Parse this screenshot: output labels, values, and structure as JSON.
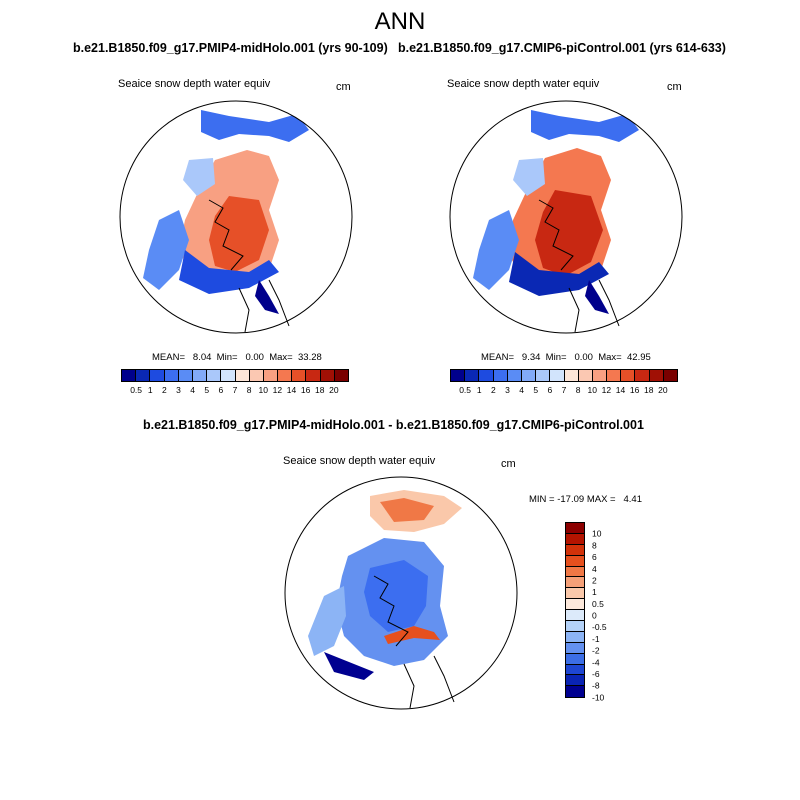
{
  "title": "ANN",
  "panels": [
    {
      "case_title": "b.e21.B1850.f09_g17.PMIP4-midHolo.001 (yrs 90-109)",
      "variable": "Seaice snow depth water equiv",
      "units": "cm",
      "stats": "MEAN=   8.04  Min=   0.00  Max=  33.28"
    },
    {
      "case_title": "b.e21.B1850.f09_g17.CMIP6-piControl.001 (yrs 614-633)",
      "variable": "Seaice snow depth water equiv",
      "units": "cm",
      "stats": "MEAN=   9.34  Min=   0.00  Max=  42.95"
    }
  ],
  "diff_panel": {
    "case_title": "b.e21.B1850.f09_g17.PMIP4-midHolo.001 - b.e21.B1850.f09_g17.CMIP6-piControl.001",
    "variable": "Seaice snow depth water equiv",
    "units": "cm",
    "stats": "MIN = -17.09 MAX =   4.41"
  },
  "colorbar": {
    "labels": [
      "0.5",
      "1",
      "2",
      "3",
      "4",
      "5",
      "6",
      "7",
      "8",
      "10",
      "12",
      "14",
      "16",
      "18",
      "20"
    ],
    "colors": [
      "#00008c",
      "#0a28b4",
      "#1e4be0",
      "#3c6ef0",
      "#5a8cf5",
      "#82aaf8",
      "#aac8fa",
      "#d2e4fc",
      "#fde6d8",
      "#fbc8b2",
      "#f8a082",
      "#f47850",
      "#e65028",
      "#c82812",
      "#a01005",
      "#7a0000"
    ]
  },
  "diff_colorbar": {
    "labels": [
      "10",
      "8",
      "6",
      "4",
      "2",
      "1",
      "0.5",
      "0",
      "-0.5",
      "-1",
      "-2",
      "-4",
      "-6",
      "-8",
      "-10"
    ],
    "colors": [
      "#8c0000",
      "#b41400",
      "#d2320a",
      "#e6501e",
      "#f07846",
      "#f5a078",
      "#fac8aa",
      "#fde9dc",
      "#dceafa",
      "#b4d2f8",
      "#8cb4f5",
      "#6491f0",
      "#3c6ee6",
      "#1e46d2",
      "#0a24b4",
      "#000090"
    ]
  }
}
